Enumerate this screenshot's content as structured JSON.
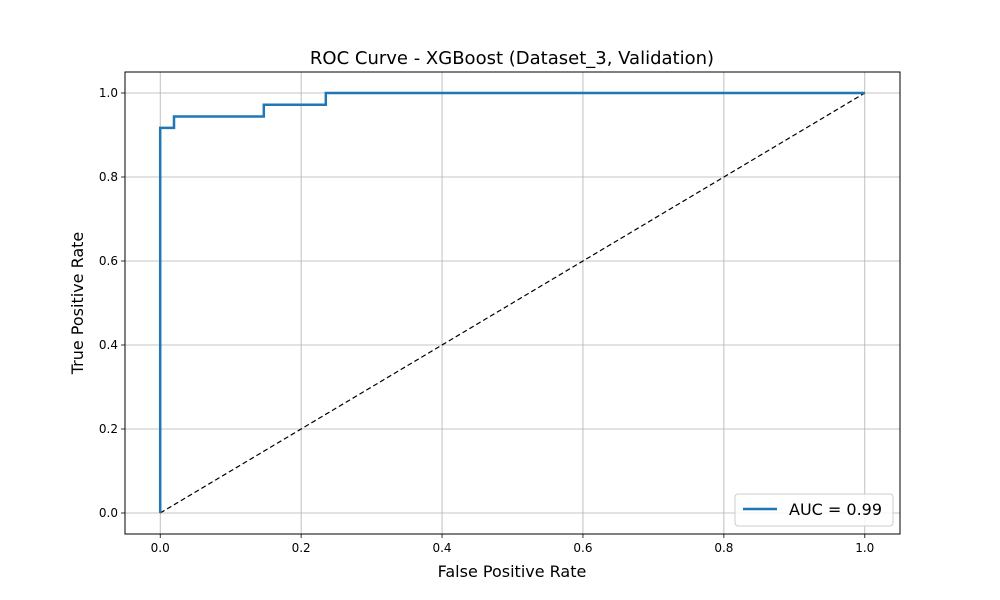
{
  "chart_data": {
    "type": "line",
    "title": "ROC Curve - XGBoost (Dataset_3, Validation)",
    "xlabel": "False Positive Rate",
    "ylabel": "True Positive Rate",
    "xlim": [
      -0.05,
      1.05
    ],
    "ylim": [
      -0.05,
      1.05
    ],
    "x_ticks": [
      "0.0",
      "0.2",
      "0.4",
      "0.6",
      "0.8",
      "1.0"
    ],
    "y_ticks": [
      "0.0",
      "0.2",
      "0.4",
      "0.6",
      "0.8",
      "1.0"
    ],
    "grid": true,
    "legend_position": "lower-right",
    "series": [
      {
        "name": "AUC = 0.99",
        "color": "#1f77b4",
        "style": "solid",
        "x": [
          0.0,
          0.0,
          0.0,
          0.0196,
          0.0196,
          0.147,
          0.147,
          0.235,
          0.235,
          1.0
        ],
        "y": [
          0.0,
          0.917,
          0.917,
          0.917,
          0.944,
          0.944,
          0.972,
          0.972,
          1.0,
          1.0
        ]
      },
      {
        "name": "",
        "color": "#000000",
        "style": "dashed",
        "x": [
          0.0,
          1.0
        ],
        "y": [
          0.0,
          1.0
        ]
      }
    ]
  }
}
